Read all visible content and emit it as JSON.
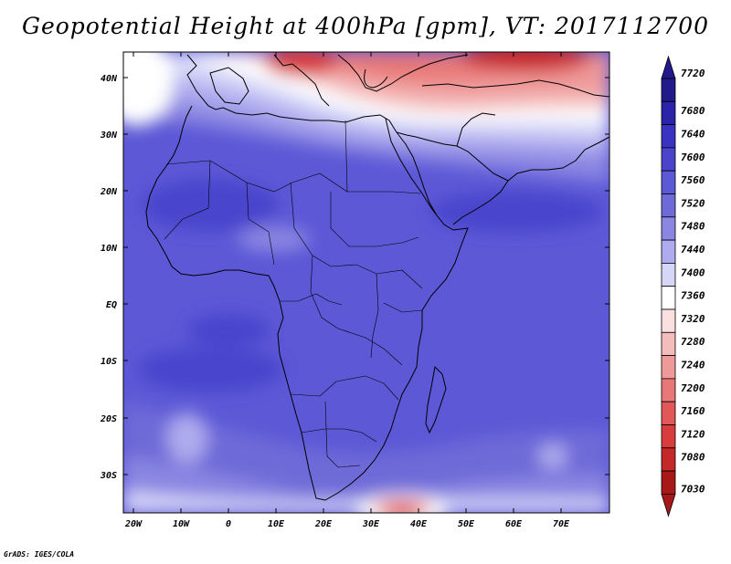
{
  "title": "Geopotential Height at 400hPa [gpm], VT: 2017112700",
  "credit": "GrADS: IGES/COLA",
  "lat_labels": [
    "40N",
    "30N",
    "20N",
    "10N",
    "EQ",
    "10S",
    "20S",
    "30S"
  ],
  "lon_labels": [
    "20W",
    "10W",
    "0",
    "10E",
    "20E",
    "30E",
    "40E",
    "50E",
    "60E",
    "70E"
  ],
  "colorbar": {
    "levels": [
      "7720",
      "7680",
      "7640",
      "7600",
      "7560",
      "7520",
      "7480",
      "7440",
      "7400",
      "7360",
      "7320",
      "7280",
      "7240",
      "7200",
      "7160",
      "7120",
      "7080",
      "7030"
    ],
    "colors": [
      "#221a8a",
      "#2b24a8",
      "#3a33c2",
      "#4a44cc",
      "#5c58d6",
      "#6e6ad8",
      "#8a86e2",
      "#aeabee",
      "#d6d6f8",
      "#ffffff",
      "#fae0e0",
      "#f5bcbc",
      "#ef9a9a",
      "#e87878",
      "#e25858",
      "#d83c3c",
      "#c42828",
      "#a81818"
    ],
    "top_cap_color": "#221a8a",
    "bottom_cap_color": "#a81818"
  }
}
